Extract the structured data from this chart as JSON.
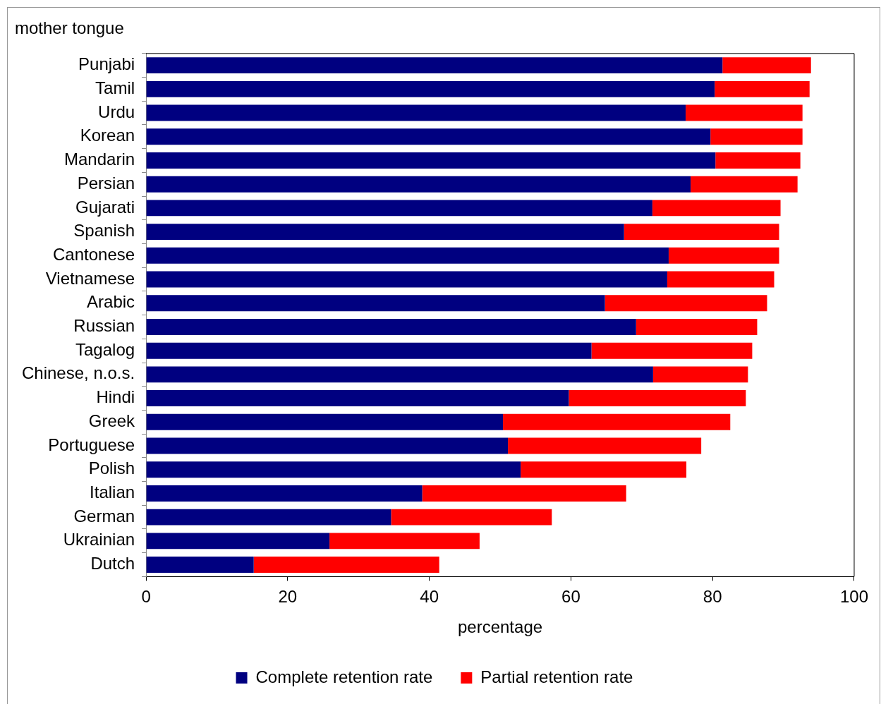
{
  "chart_data": {
    "type": "bar",
    "orientation": "horizontal",
    "stacked": true,
    "title": "mother tongue",
    "xlabel": "percentage",
    "categories": [
      "Punjabi",
      "Tamil",
      "Urdu",
      "Korean",
      "Mandarin",
      "Persian",
      "Gujarati",
      "Spanish",
      "Cantonese",
      "Vietnamese",
      "Arabic",
      "Russian",
      "Tagalog",
      "Chinese, n.o.s.",
      "Hindi",
      "Greek",
      "Portuguese",
      "Polish",
      "Italian",
      "German",
      "Ukrainian",
      "Dutch"
    ],
    "series": [
      {
        "name": "Complete retention rate",
        "color": "#000080",
        "values": [
          81.4,
          80.3,
          76.2,
          79.7,
          80.4,
          76.9,
          71.5,
          67.5,
          73.8,
          73.6,
          64.8,
          69.2,
          62.9,
          71.6,
          59.7,
          50.4,
          51.1,
          52.9,
          39.0,
          34.6,
          25.9,
          15.2
        ]
      },
      {
        "name": "Partial retention rate",
        "color": "#ff0000",
        "values": [
          12.5,
          13.4,
          16.5,
          13.0,
          12.0,
          15.1,
          18.1,
          21.9,
          15.6,
          15.1,
          22.9,
          17.1,
          22.7,
          13.4,
          25.0,
          32.1,
          27.3,
          23.4,
          28.8,
          22.7,
          21.2,
          26.2
        ]
      }
    ],
    "xlim": [
      0,
      100
    ],
    "xticks": [
      0,
      20,
      40,
      60,
      80,
      100
    ],
    "grid": false,
    "legend": "bottom"
  }
}
